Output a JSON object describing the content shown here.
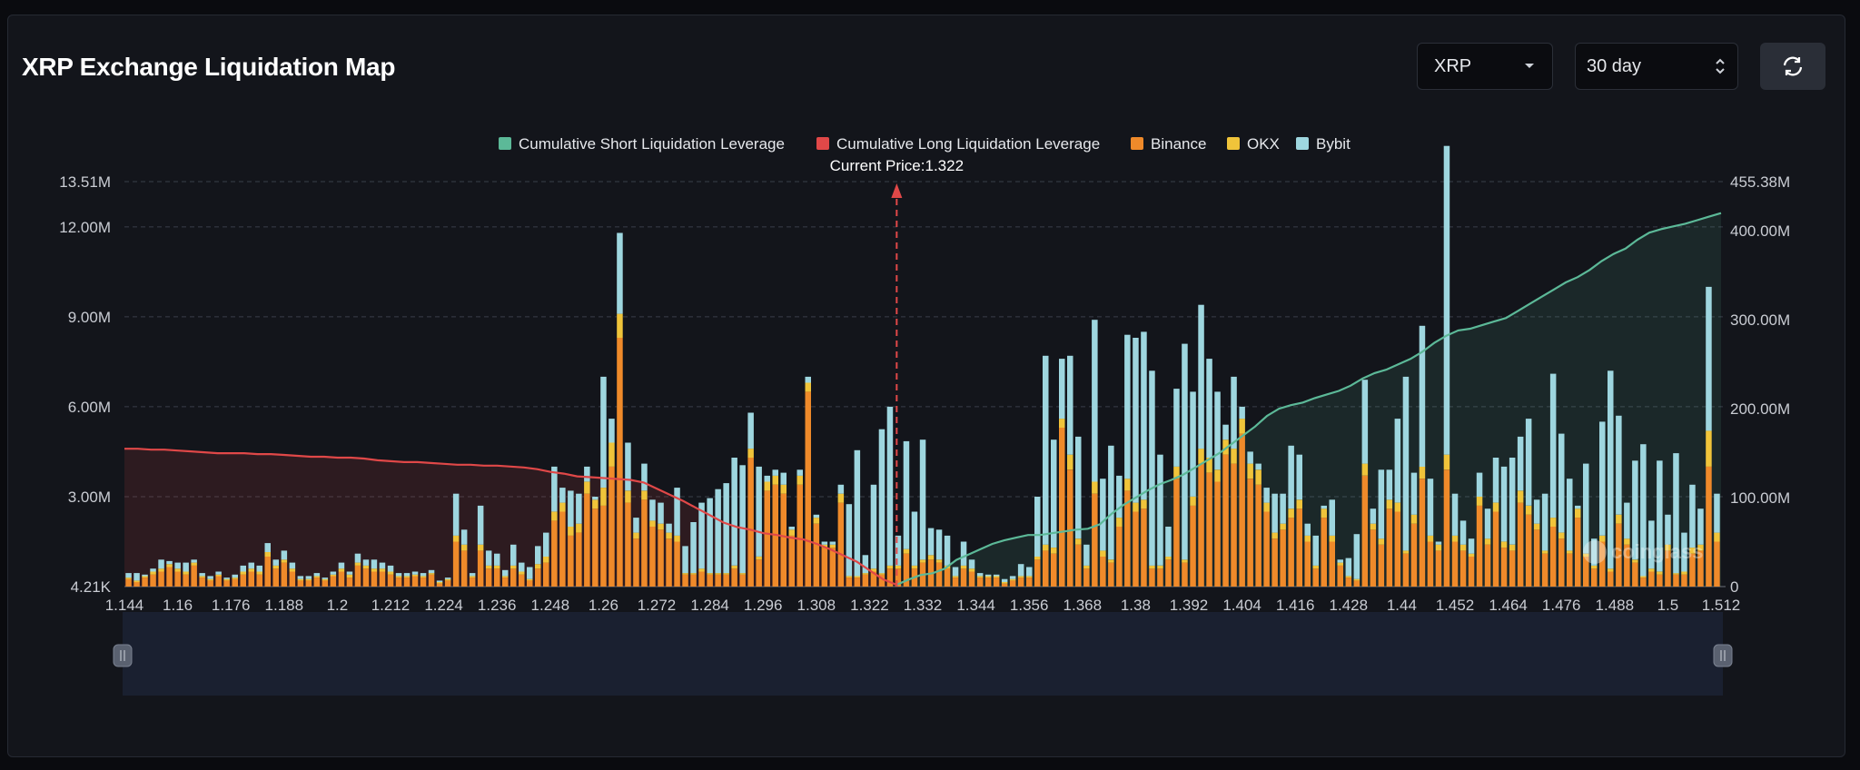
{
  "header": {
    "title": "XRP Exchange Liquidation Map"
  },
  "controls": {
    "symbol": "XRP",
    "range": "30 day",
    "refresh_icon": "refresh-icon"
  },
  "colors": {
    "short": "#5cb998",
    "long": "#e04848",
    "binance": "#ef8a2a",
    "okx": "#f0c43a",
    "bybit": "#9ed6df",
    "current_price_line": "#e04848"
  },
  "watermark": "coinglass",
  "chart_data": {
    "type": "bar",
    "title": "",
    "current_price": 1.322,
    "current_price_label": "Current Price:1.322",
    "legend": [
      "Cumulative Short Liquidation Leverage",
      "Cumulative Long Liquidation Leverage",
      "Binance",
      "OKX",
      "Bybit"
    ],
    "x_range": [
      1.144,
      1.512
    ],
    "x_tick_labels": [
      "1.144",
      "1.16",
      "1.176",
      "1.188",
      "1.2",
      "1.212",
      "1.224",
      "1.236",
      "1.248",
      "1.26",
      "1.272",
      "1.284",
      "1.296",
      "1.308",
      "1.322",
      "1.332",
      "1.344",
      "1.356",
      "1.368",
      "1.38",
      "1.392",
      "1.404",
      "1.416",
      "1.428",
      "1.44",
      "1.452",
      "1.464",
      "1.476",
      "1.488",
      "1.5",
      "1.512"
    ],
    "y_left": {
      "ticks": [
        0,
        3000000,
        6000000,
        9000000,
        12000000,
        13510000
      ],
      "labels": [
        "4.21K",
        "3.00M",
        "6.00M",
        "9.00M",
        "12.00M",
        "13.51M"
      ],
      "range": [
        0,
        13510000
      ]
    },
    "y_right": {
      "ticks": [
        0,
        100000000,
        200000000,
        300000000,
        400000000,
        455380000
      ],
      "labels": [
        "0",
        "100.00M",
        "200.00M",
        "300.00M",
        "400.00M",
        "455.38M"
      ],
      "range": [
        0,
        455380000
      ]
    },
    "grid": true,
    "legend_position": "top",
    "bars": {
      "binance": [
        0.25,
        0.15,
        0.3,
        0.4,
        0.5,
        0.65,
        0.5,
        0.4,
        0.7,
        0.3,
        0.2,
        0.35,
        0.2,
        0.25,
        0.4,
        0.5,
        0.4,
        1.0,
        0.6,
        0.8,
        0.5,
        0.2,
        0.2,
        0.3,
        0.2,
        0.35,
        0.5,
        0.3,
        0.7,
        0.6,
        0.5,
        0.5,
        0.4,
        0.3,
        0.3,
        0.35,
        0.3,
        0.4,
        0.1,
        0.2,
        1.5,
        1.2,
        0.3,
        1.2,
        0.6,
        0.6,
        0.3,
        0.6,
        0.4,
        0.2,
        0.6,
        0.8,
        2.2,
        2.5,
        1.7,
        1.8,
        3.1,
        2.6,
        2.7,
        4.0,
        8.3,
        2.8,
        1.6,
        2.9,
        2.0,
        1.9,
        1.6,
        1.5,
        0.4,
        0.4,
        0.5,
        0.4,
        0.4,
        0.4,
        0.6,
        0.4,
        4.3,
        0.9,
        3.2,
        3.4,
        3.1,
        1.7,
        3.4,
        6.5,
        2.1,
        1.3,
        1.3,
        2.8,
        0.3,
        0.3,
        0.4,
        0.5,
        0.4,
        0.6,
        0.6,
        1.1,
        0.6,
        0.8,
        0.9,
        0.8,
        0.6,
        0.3,
        0.6,
        0.5,
        0.3,
        0.3,
        0.3,
        0.1,
        0.2,
        0.3,
        0.3,
        0.9,
        1.2,
        1.1,
        5.3,
        3.9,
        1.4,
        0.6,
        3.1,
        1.0,
        0.8,
        2.0,
        3.2,
        2.5,
        2.6,
        0.6,
        0.6,
        0.9,
        3.6,
        0.8,
        2.7,
        4.1,
        3.8,
        3.5,
        4.4,
        4.1,
        5.1,
        3.6,
        3.4,
        2.5,
        1.6,
        1.9,
        2.3,
        2.6,
        1.5,
        0.6,
        2.3,
        1.5,
        0.7,
        0.3,
        0.2,
        3.7,
        1.9,
        1.4,
        2.6,
        2.5,
        1.1,
        2.1,
        3.6,
        1.5,
        1.2,
        3.9,
        1.5,
        1.2,
        1.0,
        2.7,
        1.4,
        2.5,
        1.3,
        1.2,
        2.8,
        2.4,
        1.9,
        1.1,
        2.0,
        1.6,
        1.1,
        2.3,
        1.0,
        0.6,
        1.5,
        0.5,
        2.1,
        1.4,
        0.8,
        0.3,
        0.5,
        0.4,
        1.2,
        0.4,
        0.4,
        1.1,
        1.2,
        4.0,
        1.5
      ],
      "okx": [
        0.05,
        0.05,
        0.05,
        0.1,
        0.1,
        0.1,
        0.1,
        0.1,
        0.1,
        0.05,
        0.05,
        0.05,
        0.05,
        0.05,
        0.1,
        0.1,
        0.1,
        0.15,
        0.1,
        0.1,
        0.1,
        0.05,
        0.05,
        0.05,
        0.05,
        0.05,
        0.1,
        0.1,
        0.1,
        0.1,
        0.1,
        0.1,
        0.1,
        0.05,
        0.05,
        0.05,
        0.05,
        0.05,
        0.05,
        0.05,
        0.2,
        0.2,
        0.05,
        0.2,
        0.1,
        0.1,
        0.05,
        0.1,
        0.1,
        0.05,
        0.15,
        0.2,
        0.3,
        0.3,
        0.3,
        0.3,
        0.4,
        0.3,
        0.6,
        0.8,
        0.8,
        0.4,
        0.2,
        0.3,
        0.2,
        0.2,
        0.2,
        0.2,
        0.05,
        0.05,
        0.1,
        0.05,
        0.05,
        0.05,
        0.1,
        0.05,
        0.3,
        0.1,
        0.3,
        0.3,
        0.3,
        0.2,
        0.3,
        0.3,
        0.2,
        0.1,
        0.1,
        0.3,
        0.05,
        0.05,
        0.05,
        0.1,
        0.05,
        0.1,
        0.1,
        0.15,
        0.1,
        0.1,
        0.15,
        0.1,
        0.1,
        0.05,
        0.1,
        0.1,
        0.05,
        0.05,
        0.05,
        0.05,
        0.05,
        0.05,
        0.05,
        0.1,
        0.2,
        0.2,
        0.3,
        0.5,
        0.2,
        0.1,
        0.4,
        0.2,
        0.1,
        0.3,
        0.4,
        0.3,
        0.3,
        0.1,
        0.1,
        0.1,
        0.4,
        0.1,
        0.3,
        0.5,
        0.5,
        0.4,
        0.5,
        0.5,
        0.5,
        0.5,
        0.5,
        0.3,
        0.2,
        0.2,
        0.3,
        0.3,
        0.2,
        0.1,
        0.3,
        0.2,
        0.1,
        0.05,
        0.05,
        0.4,
        0.2,
        0.2,
        0.3,
        0.3,
        0.1,
        0.3,
        0.4,
        0.2,
        0.2,
        0.5,
        0.2,
        0.2,
        0.1,
        0.3,
        0.2,
        0.3,
        0.2,
        0.2,
        0.4,
        0.3,
        0.2,
        0.1,
        0.3,
        0.2,
        0.1,
        0.3,
        0.1,
        0.1,
        0.2,
        0.1,
        0.3,
        0.2,
        0.1,
        0.05,
        0.1,
        0.1,
        0.2,
        0.05,
        0.1,
        0.2,
        0.2,
        1.2,
        0.3
      ],
      "bybit": [
        0.15,
        0.25,
        0.05,
        0.1,
        0.3,
        0.1,
        0.2,
        0.3,
        0.1,
        0.1,
        0.1,
        0.1,
        0.05,
        0.1,
        0.2,
        0.2,
        0.2,
        0.3,
        0.2,
        0.3,
        0.2,
        0.1,
        0.1,
        0.1,
        0.05,
        0.1,
        0.2,
        0.1,
        0.3,
        0.2,
        0.3,
        0.2,
        0.2,
        0.1,
        0.1,
        0.1,
        0.1,
        0.1,
        0.05,
        0.05,
        1.4,
        0.5,
        0.1,
        1.3,
        0.5,
        0.4,
        0.2,
        0.7,
        0.3,
        0.4,
        0.6,
        0.8,
        1.5,
        0.5,
        1.2,
        1.0,
        0.5,
        0.1,
        3.7,
        0.8,
        2.7,
        1.6,
        0.5,
        0.9,
        0.7,
        0.7,
        0.3,
        1.6,
        0.9,
        1.7,
        2.2,
        2.5,
        2.8,
        3.0,
        3.6,
        3.6,
        1.2,
        3.0,
        0.2,
        0.2,
        0.4,
        0.1,
        0.2,
        0.2,
        0.1,
        0.1,
        0.1,
        0.3,
        2.4,
        4.2,
        0.6,
        2.8,
        4.8,
        5.3,
        1.0,
        3.6,
        1.8,
        4.0,
        0.9,
        1.0,
        1.0,
        0.3,
        0.8,
        0.3,
        0.1,
        0.05,
        0.05,
        0.1,
        0.1,
        0.4,
        0.3,
        2.0,
        6.3,
        3.6,
        2.0,
        3.3,
        3.4,
        0.7,
        5.4,
        2.4,
        3.8,
        1.4,
        4.8,
        5.5,
        5.6,
        6.5,
        3.7,
        1.0,
        2.6,
        7.2,
        3.5,
        4.8,
        3.3,
        2.6,
        0.5,
        2.4,
        0.4,
        0.4,
        0.2,
        0.5,
        1.3,
        1.0,
        2.1,
        1.5,
        0.4,
        1.0,
        0.1,
        1.2,
        0.1,
        0.6,
        1.5,
        2.8,
        0.5,
        2.3,
        1.0,
        2.8,
        5.8,
        1.4,
        4.7,
        1.9,
        0.1,
        10.3,
        1.4,
        0.8,
        0.5,
        0.8,
        1.0,
        1.5,
        2.5,
        2.9,
        1.8,
        2.9,
        0.8,
        1.9,
        4.8,
        3.3,
        2.4,
        0.1,
        3.0,
        0.9,
        3.8,
        6.6,
        3.3,
        1.2,
        3.3,
        4.4,
        1.6,
        3.7,
        1.0,
        4.0,
        1.3,
        2.1,
        1.2,
        4.8,
        1.3,
        1.2,
        2.0,
        1.4,
        0.8,
        5.6
      ],
      "unit": "millions"
    },
    "cumulative_long": {
      "x_range": [
        1.144,
        1.322
      ],
      "values_millions": [
        155,
        155,
        154,
        154,
        153,
        152,
        151,
        150,
        150,
        150,
        149,
        149,
        148,
        147,
        146,
        146,
        145,
        145,
        144,
        142,
        141,
        140,
        140,
        139,
        138,
        137,
        137,
        136,
        136,
        135,
        134,
        132,
        129,
        127,
        124,
        123,
        122,
        121,
        120,
        117,
        110,
        103,
        96,
        88,
        80,
        72,
        67,
        64,
        60,
        58,
        55,
        53,
        48,
        42,
        35,
        28,
        18,
        8,
        2
      ]
    },
    "cumulative_short": {
      "x_range": [
        1.322,
        1.512
      ],
      "values_millions": [
        2,
        8,
        13,
        15,
        20,
        30,
        36,
        42,
        48,
        52,
        55,
        58,
        58,
        60,
        62,
        64,
        65,
        70,
        82,
        92,
        100,
        108,
        115,
        120,
        126,
        134,
        142,
        150,
        160,
        170,
        180,
        192,
        200,
        204,
        207,
        212,
        216,
        220,
        226,
        234,
        240,
        244,
        250,
        256,
        264,
        274,
        282,
        288,
        290,
        294,
        298,
        302,
        310,
        318,
        326,
        334,
        342,
        348,
        356,
        366,
        374,
        380,
        390,
        398,
        402,
        405,
        408,
        412,
        416,
        420
      ]
    }
  }
}
